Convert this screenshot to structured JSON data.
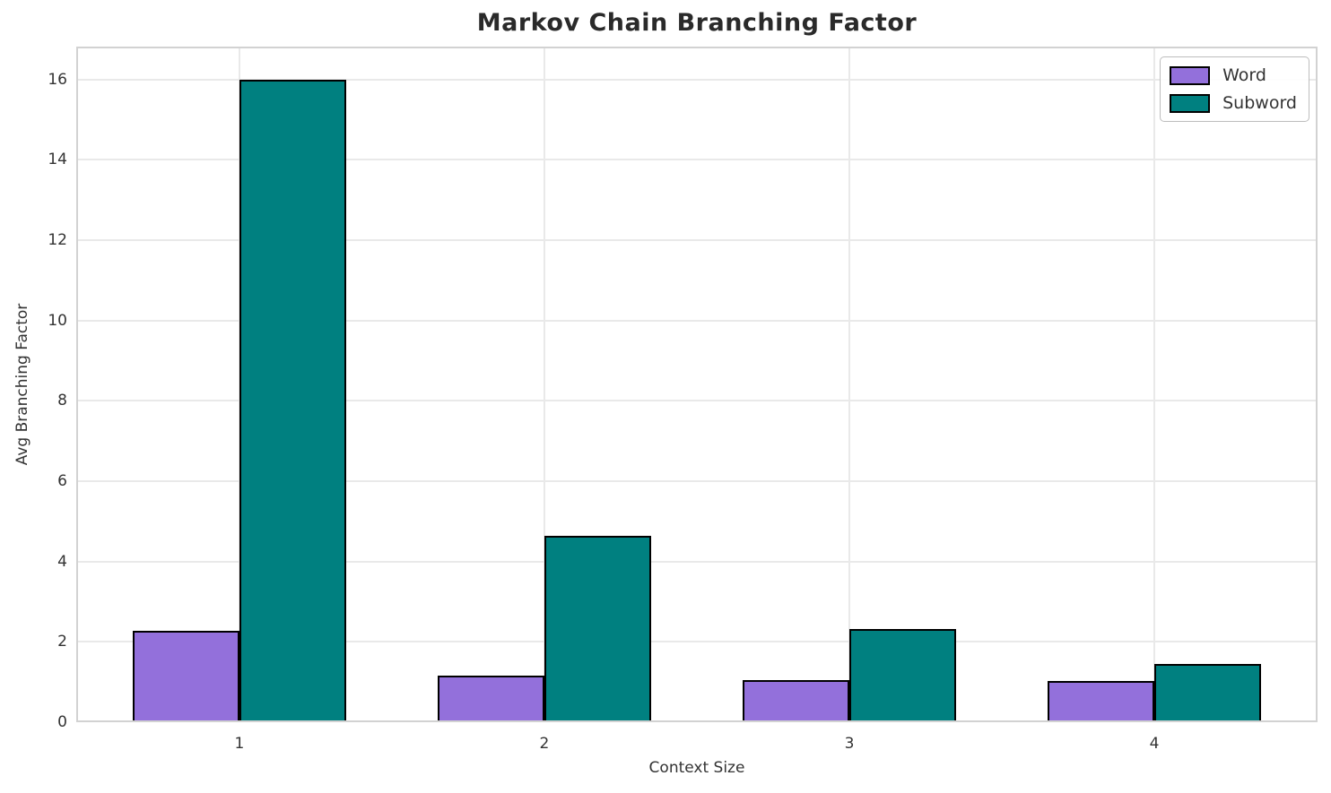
{
  "chart_data": {
    "type": "bar",
    "title": "Markov Chain Branching Factor",
    "xlabel": "Context Size",
    "ylabel": "Avg Branching Factor",
    "categories": [
      "1",
      "2",
      "3",
      "4"
    ],
    "series": [
      {
        "name": "Word",
        "color": "#9370DB",
        "values": [
          2.28,
          1.16,
          1.05,
          1.02
        ]
      },
      {
        "name": "Subword",
        "color": "#008080",
        "values": [
          16.0,
          4.65,
          2.32,
          1.45
        ]
      }
    ],
    "bar_width": 0.35,
    "bar_edge_color": "#000000",
    "yticks": [
      0,
      2,
      4,
      6,
      8,
      10,
      12,
      14,
      16
    ],
    "ylim": [
      0,
      16.82
    ],
    "xlim": [
      -0.535,
      3.535
    ],
    "grid": true,
    "legend_position": "upper right"
  },
  "legend": {
    "items": [
      {
        "label": "Word",
        "color": "#9370DB"
      },
      {
        "label": "Subword",
        "color": "#008080"
      }
    ]
  }
}
